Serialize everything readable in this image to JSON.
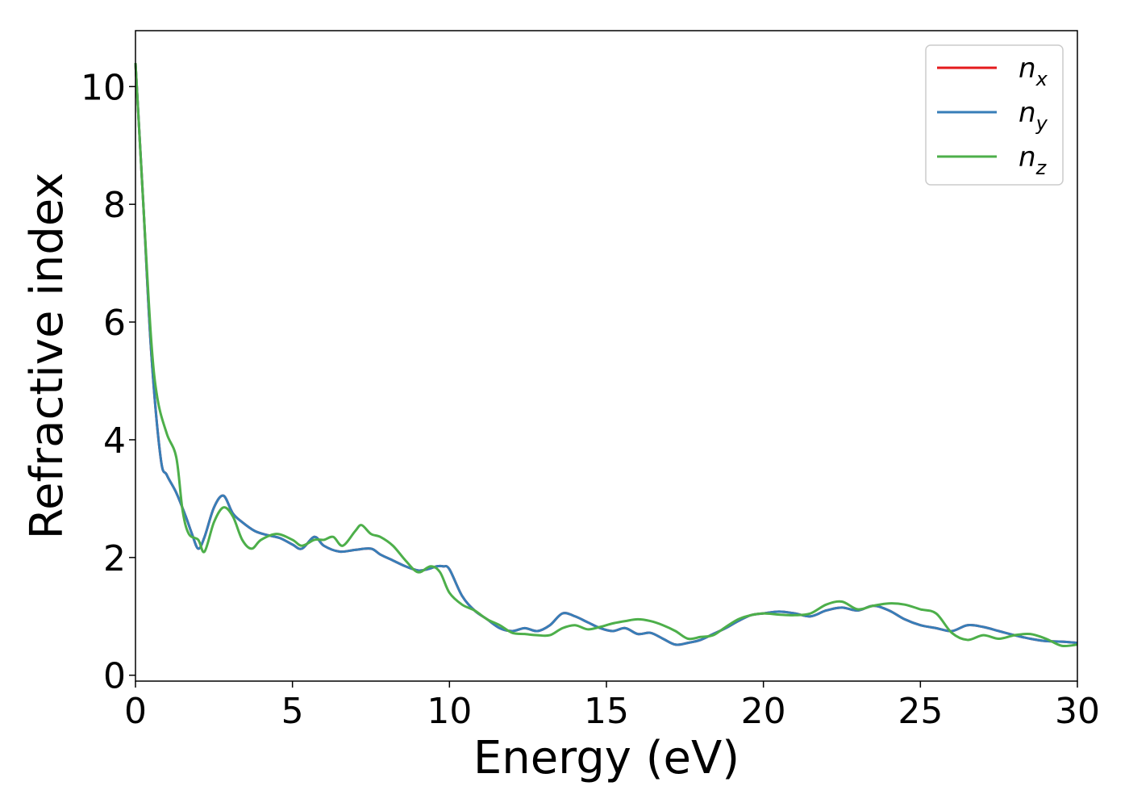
{
  "chart_data": {
    "type": "line",
    "xlabel": "Energy (eV)",
    "ylabel": "Refractive index",
    "xlim": [
      0,
      30
    ],
    "ylim": [
      -0.1,
      10.95
    ],
    "xticks": [
      "0",
      "5",
      "10",
      "15",
      "20",
      "25",
      "30"
    ],
    "yticks": [
      "0",
      "2",
      "4",
      "6",
      "8",
      "10"
    ],
    "grid": false,
    "legend_position": "top-right",
    "series": [
      {
        "name": "n_x",
        "label_main": "n",
        "label_sub": "x",
        "color": "#e41a1c",
        "x": [
          0.0,
          0.25,
          0.5,
          0.8,
          1.0,
          1.3,
          1.6,
          1.8,
          2.0,
          2.2,
          2.5,
          2.8,
          3.1,
          3.4,
          3.8,
          4.2,
          4.6,
          5.0,
          5.3,
          5.7,
          6.0,
          6.5,
          7.0,
          7.5,
          7.8,
          8.2,
          8.6,
          9.0,
          9.3,
          9.6,
          9.8,
          10.0,
          10.4,
          10.8,
          11.2,
          11.6,
          12.0,
          12.4,
          12.8,
          13.2,
          13.6,
          14.0,
          14.4,
          14.8,
          15.2,
          15.6,
          16.0,
          16.4,
          16.8,
          17.2,
          17.6,
          18.0,
          18.4,
          18.8,
          19.2,
          19.6,
          20.0,
          20.5,
          21.0,
          21.5,
          22.0,
          22.5,
          23.0,
          23.5,
          24.0,
          24.5,
          25.0,
          25.5,
          26.0,
          26.5,
          27.0,
          27.5,
          28.0,
          28.5,
          29.0,
          29.5,
          30.0
        ],
        "y": [
          10.4,
          8.0,
          5.5,
          3.7,
          3.4,
          3.1,
          2.7,
          2.4,
          2.15,
          2.35,
          2.85,
          3.05,
          2.75,
          2.6,
          2.45,
          2.38,
          2.33,
          2.22,
          2.15,
          2.35,
          2.2,
          2.1,
          2.13,
          2.15,
          2.05,
          1.95,
          1.85,
          1.78,
          1.8,
          1.85,
          1.85,
          1.8,
          1.35,
          1.1,
          0.95,
          0.8,
          0.75,
          0.8,
          0.75,
          0.85,
          1.05,
          1.0,
          0.9,
          0.8,
          0.75,
          0.8,
          0.7,
          0.72,
          0.62,
          0.52,
          0.55,
          0.6,
          0.7,
          0.8,
          0.92,
          1.02,
          1.05,
          1.08,
          1.05,
          1.0,
          1.1,
          1.15,
          1.1,
          1.18,
          1.1,
          0.95,
          0.85,
          0.8,
          0.75,
          0.85,
          0.82,
          0.75,
          0.68,
          0.62,
          0.58,
          0.57,
          0.55
        ]
      },
      {
        "name": "n_y",
        "label_main": "n",
        "label_sub": "y",
        "color": "#377eb8",
        "x": [
          0.0,
          0.25,
          0.5,
          0.8,
          1.0,
          1.3,
          1.6,
          1.8,
          2.0,
          2.2,
          2.5,
          2.8,
          3.1,
          3.4,
          3.8,
          4.2,
          4.6,
          5.0,
          5.3,
          5.7,
          6.0,
          6.5,
          7.0,
          7.5,
          7.8,
          8.2,
          8.6,
          9.0,
          9.3,
          9.6,
          9.8,
          10.0,
          10.4,
          10.8,
          11.2,
          11.6,
          12.0,
          12.4,
          12.8,
          13.2,
          13.6,
          14.0,
          14.4,
          14.8,
          15.2,
          15.6,
          16.0,
          16.4,
          16.8,
          17.2,
          17.6,
          18.0,
          18.4,
          18.8,
          19.2,
          19.6,
          20.0,
          20.5,
          21.0,
          21.5,
          22.0,
          22.5,
          23.0,
          23.5,
          24.0,
          24.5,
          25.0,
          25.5,
          26.0,
          26.5,
          27.0,
          27.5,
          28.0,
          28.5,
          29.0,
          29.5,
          30.0
        ],
        "y": [
          10.4,
          8.0,
          5.5,
          3.7,
          3.4,
          3.1,
          2.7,
          2.4,
          2.15,
          2.35,
          2.85,
          3.05,
          2.75,
          2.6,
          2.45,
          2.38,
          2.33,
          2.22,
          2.15,
          2.35,
          2.2,
          2.1,
          2.13,
          2.15,
          2.05,
          1.95,
          1.85,
          1.78,
          1.8,
          1.85,
          1.85,
          1.8,
          1.35,
          1.1,
          0.95,
          0.8,
          0.75,
          0.8,
          0.75,
          0.85,
          1.05,
          1.0,
          0.9,
          0.8,
          0.75,
          0.8,
          0.7,
          0.72,
          0.62,
          0.52,
          0.55,
          0.6,
          0.7,
          0.8,
          0.92,
          1.02,
          1.05,
          1.08,
          1.05,
          1.0,
          1.1,
          1.15,
          1.1,
          1.18,
          1.1,
          0.95,
          0.85,
          0.8,
          0.75,
          0.85,
          0.82,
          0.75,
          0.68,
          0.62,
          0.58,
          0.57,
          0.55
        ]
      },
      {
        "name": "n_z",
        "label_main": "n",
        "label_sub": "z",
        "color": "#4daf4a",
        "x": [
          0.0,
          0.25,
          0.5,
          0.7,
          1.0,
          1.3,
          1.5,
          1.7,
          2.0,
          2.2,
          2.5,
          2.8,
          3.1,
          3.4,
          3.7,
          4.0,
          4.5,
          5.0,
          5.3,
          5.7,
          6.0,
          6.3,
          6.6,
          7.0,
          7.2,
          7.5,
          7.8,
          8.2,
          8.6,
          9.0,
          9.4,
          9.7,
          10.0,
          10.4,
          10.8,
          11.2,
          11.6,
          12.0,
          12.4,
          12.8,
          13.2,
          13.6,
          14.0,
          14.4,
          14.8,
          15.2,
          15.6,
          16.0,
          16.4,
          16.8,
          17.2,
          17.6,
          18.0,
          18.4,
          18.8,
          19.2,
          19.6,
          20.0,
          20.5,
          21.0,
          21.5,
          22.0,
          22.5,
          23.0,
          23.5,
          24.0,
          24.5,
          25.0,
          25.5,
          26.0,
          26.5,
          27.0,
          27.5,
          28.0,
          28.5,
          29.0,
          29.5,
          30.0
        ],
        "y": [
          10.4,
          8.0,
          5.7,
          4.7,
          4.1,
          3.7,
          2.8,
          2.4,
          2.3,
          2.1,
          2.6,
          2.85,
          2.7,
          2.3,
          2.15,
          2.3,
          2.4,
          2.3,
          2.2,
          2.3,
          2.3,
          2.35,
          2.2,
          2.45,
          2.55,
          2.4,
          2.35,
          2.2,
          1.95,
          1.75,
          1.85,
          1.75,
          1.4,
          1.2,
          1.1,
          0.95,
          0.85,
          0.72,
          0.7,
          0.68,
          0.68,
          0.8,
          0.85,
          0.78,
          0.82,
          0.88,
          0.92,
          0.95,
          0.92,
          0.85,
          0.75,
          0.62,
          0.65,
          0.68,
          0.82,
          0.95,
          1.02,
          1.05,
          1.03,
          1.02,
          1.05,
          1.2,
          1.25,
          1.12,
          1.18,
          1.22,
          1.2,
          1.12,
          1.05,
          0.72,
          0.6,
          0.68,
          0.62,
          0.68,
          0.7,
          0.62,
          0.5,
          0.52
        ]
      }
    ]
  }
}
